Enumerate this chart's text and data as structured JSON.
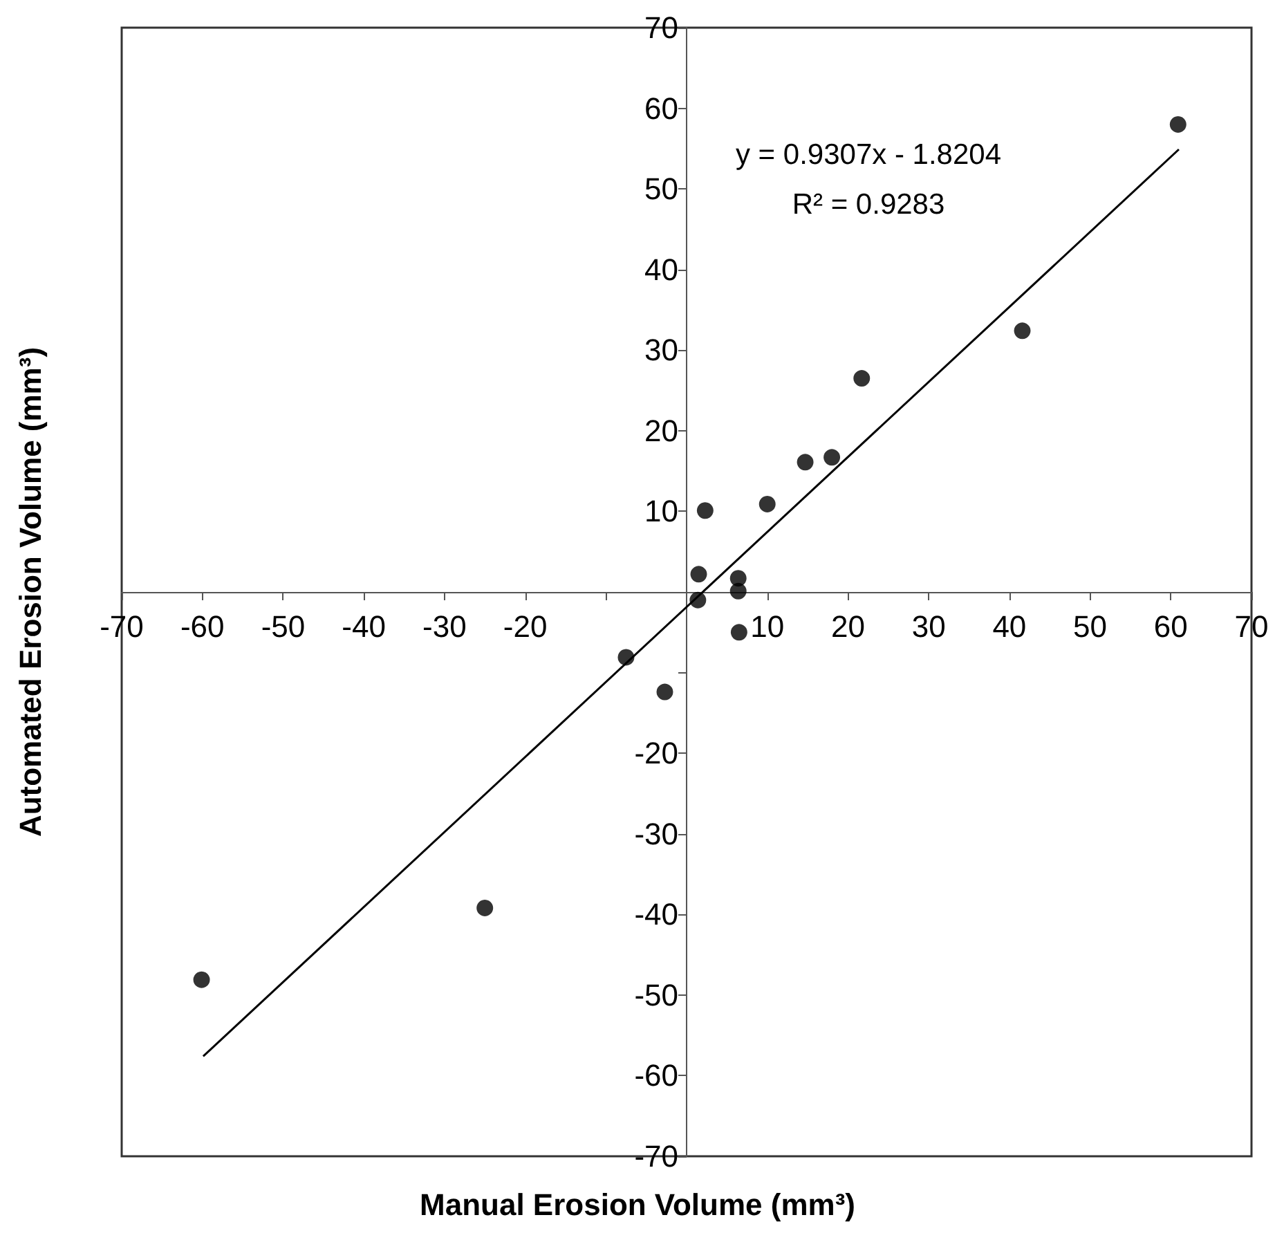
{
  "chart_data": {
    "type": "scatter",
    "xlabel": "Manual Erosion Volume (mm³)",
    "ylabel": "Automated Erosion Volume (mm³)",
    "annotations": [
      "y = 0.9307x - 1.8204",
      "R² = 0.9283"
    ],
    "series": [
      {
        "color": "#000000",
        "marker": "circle",
        "x": [
          60.9,
          41.6,
          21.7,
          18.0,
          14.7,
          10.0,
          2.3,
          1.5,
          1.4,
          6.4,
          6.4,
          6.5,
          -2.7,
          -7.5,
          -25.0,
          -60.1
        ],
        "values": [
          58.0,
          32.4,
          26.5,
          16.7,
          16.1,
          10.9,
          10.1,
          2.2,
          -1.0,
          1.7,
          0.1,
          -5.0,
          -12.4,
          -8.1,
          -39.2,
          -48.1
        ]
      },
      {
        "type": "line",
        "color": "#000000",
        "marker": "none",
        "line_style": "solid",
        "x": [
          -59.9,
          61.0
        ],
        "values": [
          -57.6,
          54.9
        ]
      }
    ],
    "xlim": [
      -70,
      70
    ],
    "ylim": [
      -70,
      70
    ],
    "xticks": [
      -70,
      -60,
      -50,
      -40,
      -30,
      -20,
      {
        "value": -10,
        "label": null
      },
      {
        "value": 0,
        "label": null
      },
      10,
      20,
      30,
      40,
      50,
      60,
      70
    ],
    "yticks": [
      -70,
      -60,
      -50,
      -40,
      -30,
      -20,
      {
        "value": -10,
        "label": null
      },
      {
        "value": 0,
        "label": null
      },
      10,
      20,
      30,
      40,
      50,
      60,
      70
    ],
    "grid": false
  }
}
